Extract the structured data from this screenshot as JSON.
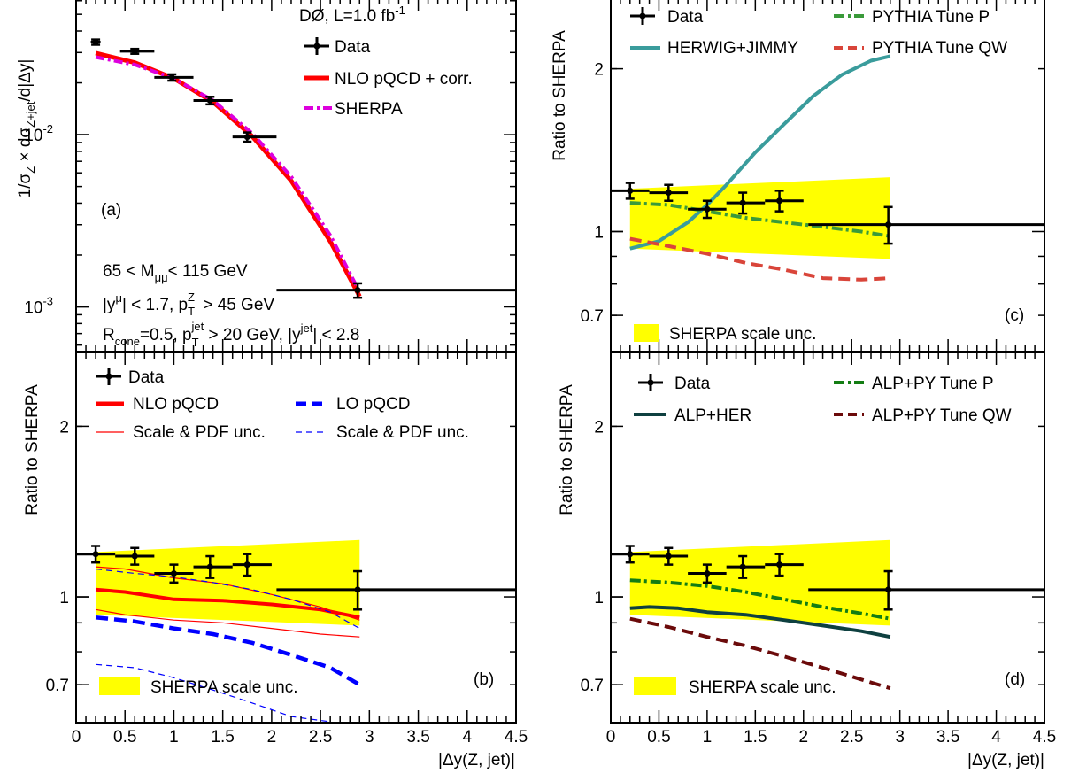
{
  "colors": {
    "data": "#000000",
    "nlo": "#ff0000",
    "sherpa": "#dd00dd",
    "lo": "#0000ff",
    "band": "#ffff00",
    "herwig": "#3a9c9c",
    "pythia_p": "#3a9a3a",
    "pythia_qw": "#d9453a",
    "alp_her": "#0e4040",
    "alp_p": "#137d13",
    "alp_qw": "#6b0a0a"
  },
  "chart_data": [
    {
      "id": "a",
      "type": "line",
      "panel_label": "(a)",
      "ylabel": "1/σ_Z × dσ_Z+jet/d|Δy|",
      "yscale": "log",
      "xlim": [
        0,
        4.5
      ],
      "ylim": [
        0.00055,
        0.062
      ],
      "y_ticks": [
        {
          "value": 0.01,
          "label": "10",
          "exp": "-2"
        },
        {
          "value": 0.001,
          "label": "10",
          "exp": "-3"
        }
      ],
      "experiment": "DØ, L=1.0 fb",
      "experiment_sup": "-1",
      "cuts": [
        "65 < M_μμ < 115 GeV",
        "|y^μ| < 1.7, p_T^Z > 45 GeV",
        "R_cone=0.5,  p_T^jet > 20 GeV,  |y^jet| < 2.8"
      ],
      "legend": [
        "Data",
        "NLO pQCD + corr.",
        "SHERPA"
      ],
      "data": [
        {
          "x": 0.2,
          "xlo": 0.15,
          "xhi": 0.25,
          "y": 0.0345,
          "err": 0.0012
        },
        {
          "x": 0.6,
          "xlo": 0.45,
          "xhi": 0.8,
          "y": 0.0305,
          "err": 0.001
        },
        {
          "x": 0.98,
          "xlo": 0.8,
          "xhi": 1.2,
          "y": 0.0215,
          "err": 0.0009
        },
        {
          "x": 1.37,
          "xlo": 1.2,
          "xhi": 1.6,
          "y": 0.0158,
          "err": 0.0008
        },
        {
          "x": 1.75,
          "xlo": 1.6,
          "xhi": 2.05,
          "y": 0.0097,
          "err": 0.0006
        },
        {
          "x": 2.88,
          "xlo": 2.05,
          "xhi": 4.5,
          "y": 0.00125,
          "err": 0.00012
        }
      ],
      "curves": [
        {
          "name": "NLO pQCD + corr.",
          "color": "nlo",
          "dash": "",
          "width": 5,
          "x": [
            0.2,
            0.6,
            1.0,
            1.4,
            1.8,
            2.2,
            2.6,
            2.9
          ],
          "y": [
            0.0298,
            0.0262,
            0.0212,
            0.0155,
            0.0098,
            0.0054,
            0.0024,
            0.00115
          ]
        },
        {
          "name": "SHERPA",
          "color": "sherpa",
          "dash": "10,4,3,4",
          "width": 4,
          "x": [
            0.2,
            0.6,
            1.0,
            1.4,
            1.8,
            2.2,
            2.6,
            2.9
          ],
          "y": [
            0.0282,
            0.0255,
            0.0212,
            0.0158,
            0.0102,
            0.0057,
            0.0026,
            0.00122
          ]
        }
      ]
    },
    {
      "id": "b",
      "type": "line",
      "panel_label": "(b)",
      "ylabel": "Ratio to SHERPA",
      "yscale": "log",
      "xlim": [
        0,
        4.5
      ],
      "ylim": [
        0.6,
        2.7
      ],
      "xlabel": "|Δy(Z, jet)|",
      "x_tick_labels": [
        "0",
        "0.5",
        "1",
        "1.5",
        "2",
        "2.5",
        "3",
        "3.5",
        "4",
        "4.5"
      ],
      "y_ticks": [
        {
          "value": 2,
          "label": "2"
        },
        {
          "value": 1,
          "label": "1"
        },
        {
          "value": 0.7,
          "label": "0.7"
        }
      ],
      "legend": [
        "Data",
        "NLO pQCD",
        "LO pQCD",
        "Scale & PDF unc.",
        "Scale & PDF unc.",
        "SHERPA scale unc."
      ],
      "band": {
        "name": "SHERPA scale unc.",
        "x": [
          0.2,
          2.9
        ],
        "upper": [
          1.2,
          1.26
        ],
        "lower": [
          0.93,
          0.89
        ]
      },
      "data": [
        {
          "x": 0.2,
          "xlo": 0.0,
          "xhi": 0.4,
          "y": 1.19,
          "err": 0.04
        },
        {
          "x": 0.6,
          "xlo": 0.4,
          "xhi": 0.8,
          "y": 1.18,
          "err": 0.04
        },
        {
          "x": 1.0,
          "xlo": 0.8,
          "xhi": 1.2,
          "y": 1.1,
          "err": 0.04
        },
        {
          "x": 1.37,
          "xlo": 1.2,
          "xhi": 1.6,
          "y": 1.13,
          "err": 0.05
        },
        {
          "x": 1.75,
          "xlo": 1.6,
          "xhi": 2.0,
          "y": 1.14,
          "err": 0.05
        },
        {
          "x": 2.88,
          "xlo": 2.05,
          "xhi": 4.5,
          "y": 1.03,
          "err": 0.08
        }
      ],
      "curves": [
        {
          "name": "NLO pQCD",
          "color": "nlo",
          "dash": "",
          "width": 4,
          "x": [
            0.2,
            0.5,
            1.0,
            1.5,
            2.0,
            2.5,
            2.9
          ],
          "y": [
            1.03,
            1.02,
            0.99,
            0.985,
            0.97,
            0.95,
            0.92
          ]
        },
        {
          "name": "Scale & PDF unc.",
          "color": "nlo",
          "dash": "",
          "width": 1.2,
          "x": [
            0.2,
            0.5,
            1.0,
            1.5,
            2.0,
            2.5,
            2.9
          ],
          "y": [
            1.13,
            1.12,
            1.08,
            1.055,
            1.01,
            0.96,
            0.91
          ]
        },
        {
          "name": "Scale & PDF unc.",
          "color": "nlo",
          "dash": "",
          "width": 1.2,
          "x": [
            0.2,
            0.5,
            1.0,
            1.5,
            2.0,
            2.5,
            2.9
          ],
          "y": [
            0.95,
            0.93,
            0.91,
            0.9,
            0.88,
            0.86,
            0.85
          ]
        },
        {
          "name": "LO pQCD",
          "color": "lo",
          "dash": "14,7",
          "width": 4.5,
          "x": [
            0.2,
            0.6,
            1.0,
            1.4,
            1.8,
            2.2,
            2.6,
            2.9
          ],
          "y": [
            0.92,
            0.905,
            0.88,
            0.86,
            0.83,
            0.79,
            0.75,
            0.7
          ]
        },
        {
          "name": "Scale & PDF unc.",
          "color": "lo",
          "dash": "7,5",
          "width": 1.2,
          "x": [
            0.2,
            0.6,
            1.0,
            1.4,
            1.8,
            2.2,
            2.6,
            2.9
          ],
          "y": [
            1.12,
            1.1,
            1.085,
            1.06,
            1.03,
            0.99,
            0.94,
            0.88
          ]
        },
        {
          "name": "Scale & PDF unc.",
          "color": "lo",
          "dash": "7,5",
          "width": 1.2,
          "x": [
            0.2,
            0.6,
            1.0,
            1.4,
            1.8,
            2.2,
            2.6
          ],
          "y": [
            0.76,
            0.75,
            0.72,
            0.685,
            0.65,
            0.615,
            0.58
          ]
        }
      ]
    },
    {
      "id": "c",
      "type": "line",
      "panel_label": "(c)",
      "ylabel": "Ratio to SHERPA",
      "yscale": "log",
      "xlim": [
        0,
        4.5
      ],
      "ylim": [
        0.6,
        2.7
      ],
      "y_ticks": [
        {
          "value": 2,
          "label": "2"
        },
        {
          "value": 1,
          "label": "1"
        },
        {
          "value": 0.7,
          "label": "0.7"
        }
      ],
      "legend": [
        "Data",
        "PYTHIA Tune P",
        "HERWIG+JIMMY",
        "PYTHIA Tune QW",
        "SHERPA scale unc."
      ],
      "band": {
        "name": "SHERPA scale unc.",
        "x": [
          0.2,
          2.9
        ],
        "upper": [
          1.2,
          1.26
        ],
        "lower": [
          0.93,
          0.89
        ]
      },
      "data": [
        {
          "x": 0.2,
          "xlo": 0.0,
          "xhi": 0.4,
          "y": 1.19,
          "err": 0.04
        },
        {
          "x": 0.6,
          "xlo": 0.4,
          "xhi": 0.8,
          "y": 1.18,
          "err": 0.04
        },
        {
          "x": 1.0,
          "xlo": 0.8,
          "xhi": 1.2,
          "y": 1.1,
          "err": 0.04
        },
        {
          "x": 1.37,
          "xlo": 1.2,
          "xhi": 1.6,
          "y": 1.13,
          "err": 0.05
        },
        {
          "x": 1.75,
          "xlo": 1.6,
          "xhi": 2.0,
          "y": 1.14,
          "err": 0.05
        },
        {
          "x": 2.88,
          "xlo": 2.05,
          "xhi": 4.5,
          "y": 1.03,
          "err": 0.08
        }
      ],
      "curves": [
        {
          "name": "HERWIG+JIMMY",
          "color": "herwig",
          "dash": "",
          "width": 4,
          "x": [
            0.2,
            0.5,
            0.8,
            1.0,
            1.2,
            1.5,
            1.8,
            2.1,
            2.4,
            2.7,
            2.9
          ],
          "y": [
            0.93,
            0.96,
            1.04,
            1.12,
            1.22,
            1.4,
            1.58,
            1.78,
            1.95,
            2.07,
            2.11
          ]
        },
        {
          "name": "PYTHIA Tune P",
          "color": "pythia_p",
          "dash": "12,4,3,4",
          "width": 4,
          "x": [
            0.2,
            0.6,
            1.0,
            1.4,
            1.8,
            2.2,
            2.6,
            2.9
          ],
          "y": [
            1.13,
            1.12,
            1.09,
            1.06,
            1.04,
            1.02,
            1.0,
            0.98
          ]
        },
        {
          "name": "PYTHIA Tune QW",
          "color": "pythia_qw",
          "dash": "13,7",
          "width": 4,
          "x": [
            0.2,
            0.6,
            1.0,
            1.4,
            1.8,
            2.2,
            2.6,
            2.9
          ],
          "y": [
            0.97,
            0.94,
            0.91,
            0.875,
            0.85,
            0.82,
            0.815,
            0.82
          ]
        }
      ]
    },
    {
      "id": "d",
      "type": "line",
      "panel_label": "(d)",
      "ylabel": "Ratio to SHERPA",
      "yscale": "log",
      "xlim": [
        0,
        4.5
      ],
      "ylim": [
        0.6,
        2.7
      ],
      "xlabel": "|Δy(Z, jet)|",
      "x_tick_labels": [
        "0",
        "0.5",
        "1",
        "1.5",
        "2",
        "2.5",
        "3",
        "3.5",
        "4",
        "4.5"
      ],
      "y_ticks": [
        {
          "value": 2,
          "label": "2"
        },
        {
          "value": 1,
          "label": "1"
        },
        {
          "value": 0.7,
          "label": "0.7"
        }
      ],
      "legend": [
        "Data",
        "ALP+PY Tune P",
        "ALP+HER",
        "ALP+PY Tune QW",
        "SHERPA scale unc."
      ],
      "band": {
        "name": "SHERPA scale unc.",
        "x": [
          0.2,
          2.9
        ],
        "upper": [
          1.2,
          1.26
        ],
        "lower": [
          0.93,
          0.89
        ]
      },
      "data": [
        {
          "x": 0.2,
          "xlo": 0.0,
          "xhi": 0.4,
          "y": 1.19,
          "err": 0.04
        },
        {
          "x": 0.6,
          "xlo": 0.4,
          "xhi": 0.8,
          "y": 1.18,
          "err": 0.04
        },
        {
          "x": 1.0,
          "xlo": 0.8,
          "xhi": 1.2,
          "y": 1.1,
          "err": 0.04
        },
        {
          "x": 1.37,
          "xlo": 1.2,
          "xhi": 1.6,
          "y": 1.13,
          "err": 0.05
        },
        {
          "x": 1.75,
          "xlo": 1.6,
          "xhi": 2.0,
          "y": 1.14,
          "err": 0.05
        },
        {
          "x": 2.88,
          "xlo": 2.05,
          "xhi": 4.5,
          "y": 1.03,
          "err": 0.08
        }
      ],
      "curves": [
        {
          "name": "ALP+PY Tune P",
          "color": "alp_p",
          "dash": "12,4,3,4",
          "width": 4,
          "x": [
            0.2,
            0.6,
            1.0,
            1.4,
            1.8,
            2.2,
            2.6,
            2.9
          ],
          "y": [
            1.07,
            1.06,
            1.045,
            1.02,
            0.99,
            0.96,
            0.935,
            0.915
          ]
        },
        {
          "name": "ALP+HER",
          "color": "alp_her",
          "dash": "",
          "width": 4,
          "x": [
            0.2,
            0.4,
            0.7,
            1.0,
            1.4,
            1.8,
            2.2,
            2.6,
            2.9
          ],
          "y": [
            0.955,
            0.96,
            0.955,
            0.94,
            0.93,
            0.91,
            0.89,
            0.87,
            0.85
          ]
        },
        {
          "name": "ALP+PY Tune QW",
          "color": "alp_qw",
          "dash": "13,7",
          "width": 4,
          "x": [
            0.2,
            0.6,
            1.0,
            1.4,
            1.8,
            2.2,
            2.6,
            2.9
          ],
          "y": [
            0.915,
            0.885,
            0.85,
            0.82,
            0.785,
            0.75,
            0.715,
            0.69
          ]
        }
      ]
    }
  ]
}
